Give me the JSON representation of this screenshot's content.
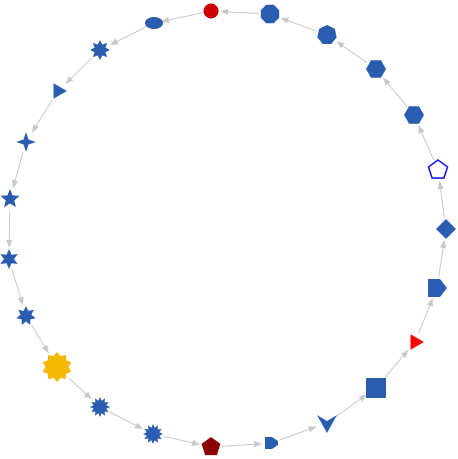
{
  "diagram": {
    "type": "directed-ring-graph",
    "edge_color": "#c8c8c8",
    "nodes": [
      {
        "id": "n0",
        "shape": "circle",
        "fill": "#cc0000",
        "stroke": "#ffffff",
        "target": "n1"
      },
      {
        "id": "n1",
        "shape": "ellipse",
        "fill": "#2a5db0",
        "target": "n2"
      },
      {
        "id": "n2",
        "shape": "star8",
        "fill": "#2a5db0",
        "target": "n3"
      },
      {
        "id": "n3",
        "shape": "triangle",
        "fill": "#2a5db0",
        "target": "n4"
      },
      {
        "id": "n4",
        "shape": "star4",
        "fill": "#2a5db0",
        "target": "n5"
      },
      {
        "id": "n5",
        "shape": "star5",
        "fill": "#2a5db0",
        "target": "n6"
      },
      {
        "id": "n6",
        "shape": "star6",
        "fill": "#2a5db0",
        "target": "n7"
      },
      {
        "id": "n7",
        "shape": "star7",
        "fill": "#2a5db0",
        "target": "n8"
      },
      {
        "id": "n8",
        "shape": "star10",
        "fill": "#f5b800",
        "target": "n9"
      },
      {
        "id": "n9",
        "shape": "star12",
        "fill": "#2a5db0",
        "target": "n10"
      },
      {
        "id": "n10",
        "shape": "star12",
        "fill": "#2a5db0",
        "target": "n11"
      },
      {
        "id": "n11",
        "shape": "pentagon",
        "fill": "#8b0000",
        "target": "n12"
      },
      {
        "id": "n12",
        "shape": "dshape",
        "fill": "#2a5db0",
        "target": "n13"
      },
      {
        "id": "n13",
        "shape": "vee",
        "fill": "#2a5db0",
        "target": "n14"
      },
      {
        "id": "n14",
        "shape": "square",
        "fill": "#2a5db0",
        "target": "n15"
      },
      {
        "id": "n15",
        "shape": "triangle",
        "fill": "#ff0000",
        "target": "n16"
      },
      {
        "id": "n16",
        "shape": "house",
        "fill": "#2a5db0",
        "target": "n17"
      },
      {
        "id": "n17",
        "shape": "diamond",
        "fill": "#2a5db0",
        "target": "n18"
      },
      {
        "id": "n18",
        "shape": "pentagon",
        "fill": "#ffffff",
        "stroke": "#1a1ae6",
        "target": "n19"
      },
      {
        "id": "n19",
        "shape": "hexagon",
        "fill": "#2a5db0",
        "target": "n20"
      },
      {
        "id": "n20",
        "shape": "hexagon",
        "fill": "#2a5db0",
        "target": "n21"
      },
      {
        "id": "n21",
        "shape": "heptagon",
        "fill": "#2a5db0",
        "target": "n22"
      },
      {
        "id": "n22",
        "shape": "octagon",
        "fill": "#2a5db0",
        "target": "n0"
      }
    ]
  }
}
